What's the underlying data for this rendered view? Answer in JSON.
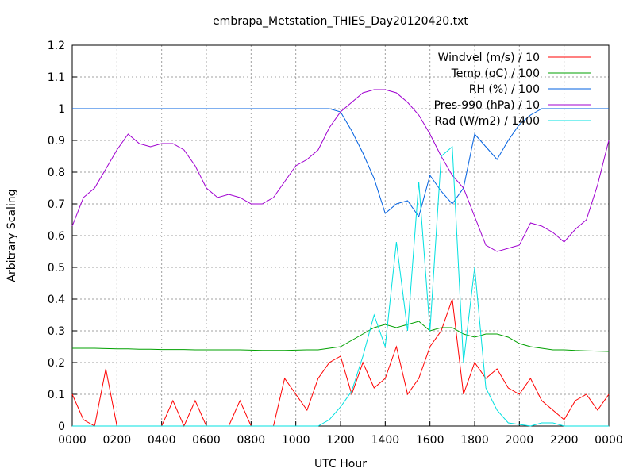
{
  "chart_data": {
    "type": "line",
    "title": "embrapa_Metstation_THIES_Day20120420.txt",
    "x_label": "UTC Hour",
    "y_label": "Arbitrary Scaling",
    "x": [
      0,
      0.5,
      1,
      1.5,
      2,
      2.5,
      3,
      3.5,
      4,
      4.5,
      5,
      5.5,
      6,
      6.5,
      7,
      7.5,
      8,
      8.5,
      9,
      9.5,
      10,
      10.5,
      11,
      11.5,
      12,
      12.5,
      13,
      13.5,
      14,
      14.5,
      15,
      15.5,
      16,
      16.5,
      17,
      17.5,
      18,
      18.5,
      19,
      19.5,
      20,
      20.5,
      21,
      21.5,
      22,
      22.5,
      23,
      23.5,
      24
    ],
    "series": [
      {
        "name": "Windvel (m/s) / 10",
        "color": "#ff0000",
        "values": [
          0.1,
          0.02,
          0,
          0.18,
          0,
          0,
          0,
          0,
          0,
          0.08,
          0,
          0.08,
          0,
          0,
          0,
          0.08,
          0,
          0,
          0,
          0.15,
          0.1,
          0.05,
          0.15,
          0.2,
          0.22,
          0.1,
          0.2,
          0.12,
          0.15,
          0.25,
          0.1,
          0.15,
          0.25,
          0.3,
          0.4,
          0.1,
          0.2,
          0.15,
          0.18,
          0.12,
          0.1,
          0.15,
          0.08,
          0.05,
          0.02,
          0.08,
          0.1,
          0.05,
          0.1
        ]
      },
      {
        "name": "Temp (oC) / 100",
        "color": "#00a000",
        "values": [
          0.245,
          0.245,
          0.245,
          0.244,
          0.243,
          0.243,
          0.242,
          0.242,
          0.241,
          0.241,
          0.241,
          0.24,
          0.24,
          0.24,
          0.24,
          0.24,
          0.239,
          0.238,
          0.238,
          0.238,
          0.239,
          0.24,
          0.24,
          0.245,
          0.25,
          0.27,
          0.29,
          0.31,
          0.32,
          0.31,
          0.32,
          0.33,
          0.3,
          0.31,
          0.31,
          0.29,
          0.28,
          0.29,
          0.29,
          0.28,
          0.26,
          0.25,
          0.245,
          0.24,
          0.24,
          0.238,
          0.237,
          0.236,
          0.235
        ]
      },
      {
        "name": "RH (%) / 100",
        "color": "#0060e0",
        "values": [
          1,
          1,
          1,
          1,
          1,
          1,
          1,
          1,
          1,
          1,
          1,
          1,
          1,
          1,
          1,
          1,
          1,
          1,
          1,
          1,
          1,
          1,
          1,
          1,
          0.99,
          0.93,
          0.86,
          0.78,
          0.67,
          0.7,
          0.71,
          0.66,
          0.79,
          0.74,
          0.7,
          0.75,
          0.92,
          0.88,
          0.84,
          0.9,
          0.95,
          0.98,
          1,
          1,
          1,
          1,
          1,
          1,
          1
        ]
      },
      {
        "name": "Pres-990 (hPa) / 10",
        "color": "#a000d0",
        "values": [
          0.63,
          0.72,
          0.75,
          0.81,
          0.87,
          0.92,
          0.89,
          0.88,
          0.89,
          0.89,
          0.87,
          0.82,
          0.75,
          0.72,
          0.73,
          0.72,
          0.7,
          0.7,
          0.72,
          0.77,
          0.82,
          0.84,
          0.87,
          0.94,
          0.99,
          1.02,
          1.05,
          1.06,
          1.06,
          1.05,
          1.02,
          0.98,
          0.92,
          0.85,
          0.79,
          0.75,
          0.66,
          0.57,
          0.55,
          0.56,
          0.57,
          0.64,
          0.63,
          0.61,
          0.58,
          0.62,
          0.65,
          0.76,
          0.9
        ]
      },
      {
        "name": "Rad (W/m2) / 1400",
        "color": "#00e0e0",
        "values": [
          0,
          0,
          0,
          0,
          0,
          0,
          0,
          0,
          0,
          0,
          0,
          0,
          0,
          0,
          0,
          0,
          0,
          0,
          0,
          0,
          0,
          0,
          0,
          0.02,
          0.06,
          0.11,
          0.22,
          0.35,
          0.25,
          0.58,
          0.3,
          0.77,
          0.3,
          0.85,
          0.88,
          0.2,
          0.5,
          0.12,
          0.05,
          0.01,
          0.005,
          0,
          0.01,
          0.01,
          0,
          0,
          0,
          0,
          0
        ]
      }
    ],
    "xlim": [
      0,
      24
    ],
    "xticks": [
      {
        "value": 0,
        "label": "0000"
      },
      {
        "value": 2,
        "label": "0200"
      },
      {
        "value": 4,
        "label": "0400"
      },
      {
        "value": 6,
        "label": "0600"
      },
      {
        "value": 8,
        "label": "0800"
      },
      {
        "value": 10,
        "label": "1000"
      },
      {
        "value": 12,
        "label": "1200"
      },
      {
        "value": 14,
        "label": "1400"
      },
      {
        "value": 16,
        "label": "1600"
      },
      {
        "value": 18,
        "label": "1800"
      },
      {
        "value": 20,
        "label": "2000"
      },
      {
        "value": 22,
        "label": "2200"
      },
      {
        "value": 24,
        "label": "0000"
      }
    ],
    "ylim": [
      0,
      1.2
    ],
    "yticks": [
      0,
      0.1,
      0.2,
      0.3,
      0.4,
      0.5,
      0.6,
      0.7,
      0.8,
      0.9,
      1,
      1.1,
      1.2
    ],
    "grid": true,
    "legend": "top-right"
  }
}
